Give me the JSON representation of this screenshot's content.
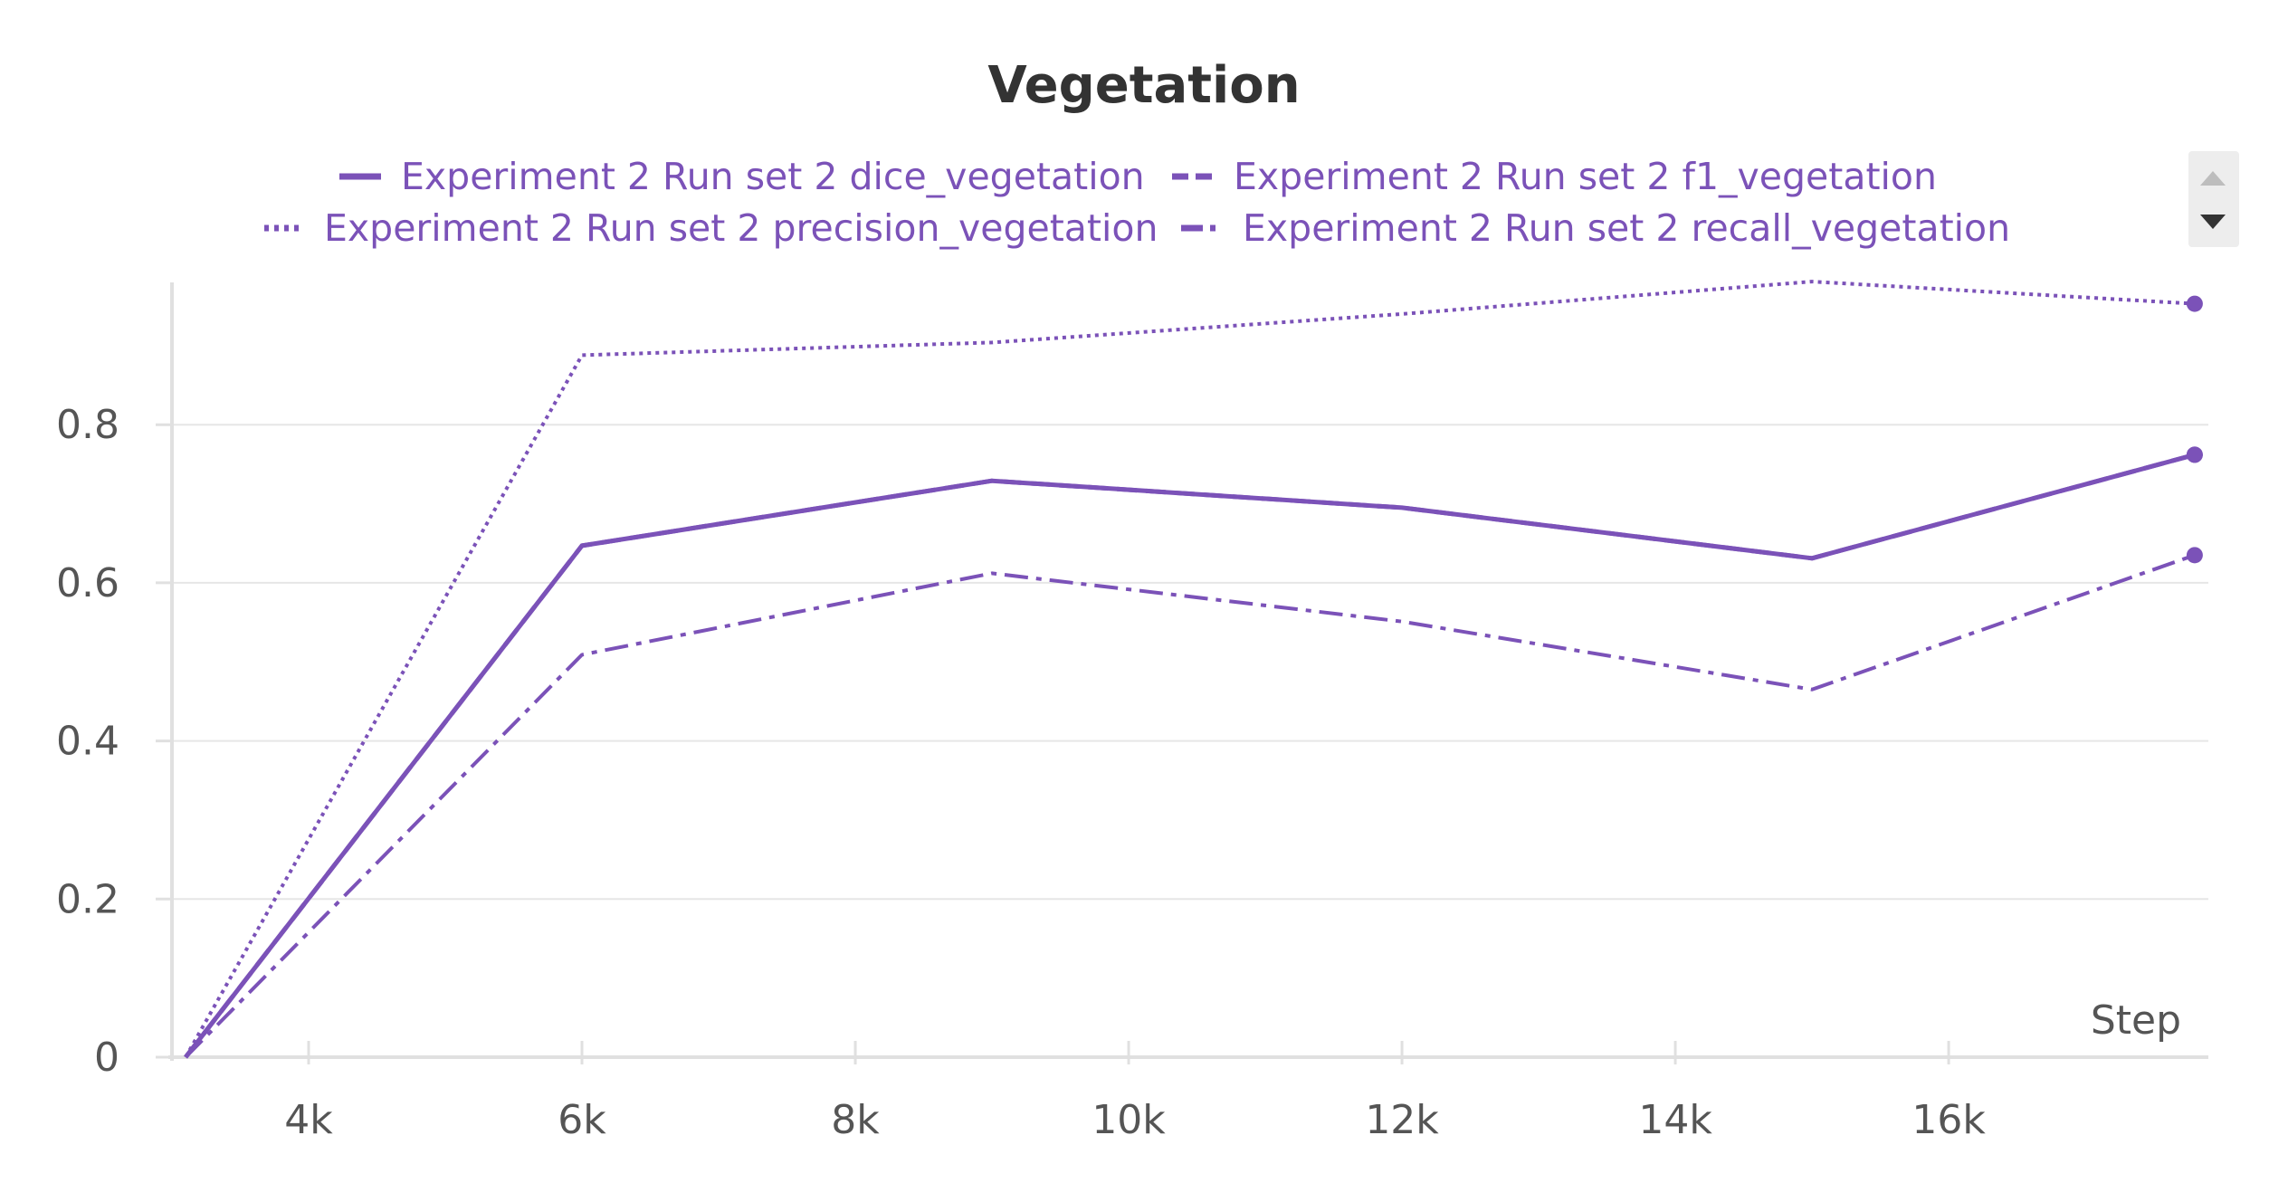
{
  "chart_data": {
    "type": "line",
    "title": "Vegetation",
    "xlabel": "Step",
    "ylabel": "",
    "xlim": [
      3000,
      17900
    ],
    "ylim": [
      0,
      0.98
    ],
    "x_ticks": [
      4000,
      6000,
      8000,
      10000,
      12000,
      14000,
      16000
    ],
    "x_tick_labels": [
      "4k",
      "6k",
      "8k",
      "10k",
      "12k",
      "14k",
      "16k"
    ],
    "y_ticks": [
      0,
      0.2,
      0.4,
      0.6,
      0.8
    ],
    "y_tick_labels": [
      "0",
      "0.2",
      "0.4",
      "0.6",
      "0.8"
    ],
    "grid": "horizontal",
    "legend_position": "top",
    "color": "#7b52b8",
    "x": [
      3100,
      6000,
      9000,
      12000,
      15000,
      17800
    ],
    "series": [
      {
        "name": "Experiment 2 Run set 2 dice_vegetation",
        "style": "solid",
        "values": [
          0.0,
          0.647,
          0.729,
          0.695,
          0.631,
          0.762
        ]
      },
      {
        "name": "Experiment 2 Run set 2 f1_vegetation",
        "style": "dashed",
        "values": [
          0.0,
          0.647,
          0.729,
          0.695,
          0.631,
          0.762
        ]
      },
      {
        "name": "Experiment 2 Run set 2 precision_vegetation",
        "style": "dotted",
        "values": [
          0.0,
          0.888,
          0.904,
          0.94,
          0.981,
          0.953
        ]
      },
      {
        "name": "Experiment 2 Run set 2 recall_vegetation",
        "style": "dashdot",
        "values": [
          0.0,
          0.509,
          0.612,
          0.551,
          0.465,
          0.635
        ]
      }
    ]
  }
}
